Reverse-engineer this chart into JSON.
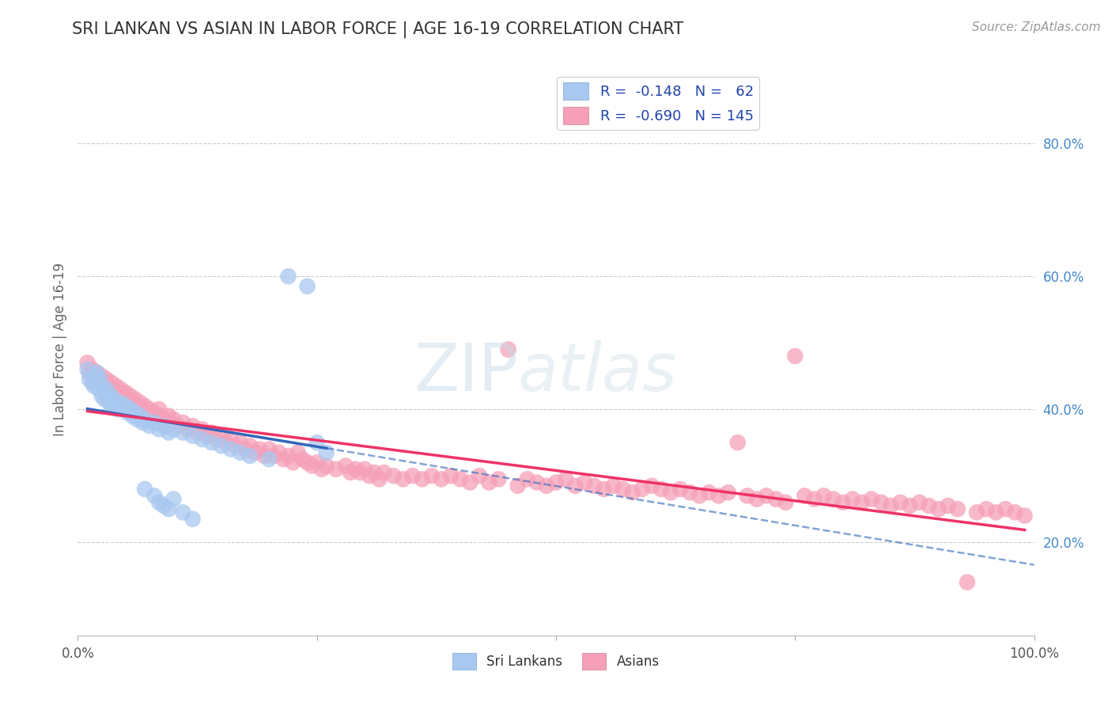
{
  "title": "SRI LANKAN VS ASIAN IN LABOR FORCE | AGE 16-19 CORRELATION CHART",
  "source": "Source: ZipAtlas.com",
  "ylabel": "In Labor Force | Age 16-19",
  "xlim": [
    0.0,
    1.0
  ],
  "ylim": [
    0.06,
    0.92
  ],
  "ytick_labels": [
    "20.0%",
    "40.0%",
    "60.0%",
    "80.0%"
  ],
  "ytick_values": [
    0.2,
    0.4,
    0.6,
    0.8
  ],
  "sri_lankans_color": "#a8c8f0",
  "asians_color": "#f5a0b8",
  "sri_lankans_line_color": "#3366bb",
  "asians_line_color": "#ee3366",
  "background_color": "#ffffff",
  "grid_color": "#cccccc",
  "R_sri": -0.148,
  "N_sri": 62,
  "R_asian": -0.69,
  "N_asian": 145,
  "sri_lankans": [
    [
      0.01,
      0.46
    ],
    [
      0.012,
      0.445
    ],
    [
      0.015,
      0.44
    ],
    [
      0.017,
      0.435
    ],
    [
      0.018,
      0.45
    ],
    [
      0.02,
      0.455
    ],
    [
      0.02,
      0.44
    ],
    [
      0.022,
      0.43
    ],
    [
      0.023,
      0.445
    ],
    [
      0.025,
      0.435
    ],
    [
      0.025,
      0.42
    ],
    [
      0.027,
      0.425
    ],
    [
      0.028,
      0.415
    ],
    [
      0.03,
      0.43
    ],
    [
      0.03,
      0.42
    ],
    [
      0.032,
      0.415
    ],
    [
      0.033,
      0.41
    ],
    [
      0.035,
      0.42
    ],
    [
      0.035,
      0.405
    ],
    [
      0.037,
      0.415
    ],
    [
      0.038,
      0.405
    ],
    [
      0.04,
      0.41
    ],
    [
      0.042,
      0.4
    ],
    [
      0.043,
      0.405
    ],
    [
      0.045,
      0.41
    ],
    [
      0.047,
      0.4
    ],
    [
      0.05,
      0.405
    ],
    [
      0.052,
      0.395
    ],
    [
      0.055,
      0.4
    ],
    [
      0.057,
      0.39
    ],
    [
      0.06,
      0.395
    ],
    [
      0.062,
      0.385
    ],
    [
      0.065,
      0.39
    ],
    [
      0.068,
      0.38
    ],
    [
      0.07,
      0.385
    ],
    [
      0.075,
      0.375
    ],
    [
      0.08,
      0.38
    ],
    [
      0.085,
      0.37
    ],
    [
      0.09,
      0.375
    ],
    [
      0.095,
      0.365
    ],
    [
      0.1,
      0.37
    ],
    [
      0.11,
      0.365
    ],
    [
      0.12,
      0.36
    ],
    [
      0.13,
      0.355
    ],
    [
      0.14,
      0.35
    ],
    [
      0.15,
      0.345
    ],
    [
      0.16,
      0.34
    ],
    [
      0.17,
      0.335
    ],
    [
      0.18,
      0.33
    ],
    [
      0.2,
      0.325
    ],
    [
      0.22,
      0.6
    ],
    [
      0.24,
      0.585
    ],
    [
      0.25,
      0.35
    ],
    [
      0.26,
      0.335
    ],
    [
      0.07,
      0.28
    ],
    [
      0.08,
      0.27
    ],
    [
      0.085,
      0.26
    ],
    [
      0.09,
      0.255
    ],
    [
      0.095,
      0.25
    ],
    [
      0.1,
      0.265
    ],
    [
      0.11,
      0.245
    ],
    [
      0.12,
      0.235
    ]
  ],
  "asians": [
    [
      0.01,
      0.47
    ],
    [
      0.012,
      0.455
    ],
    [
      0.015,
      0.46
    ],
    [
      0.018,
      0.45
    ],
    [
      0.02,
      0.455
    ],
    [
      0.022,
      0.445
    ],
    [
      0.025,
      0.45
    ],
    [
      0.027,
      0.44
    ],
    [
      0.03,
      0.445
    ],
    [
      0.032,
      0.435
    ],
    [
      0.035,
      0.44
    ],
    [
      0.037,
      0.43
    ],
    [
      0.04,
      0.435
    ],
    [
      0.042,
      0.425
    ],
    [
      0.045,
      0.43
    ],
    [
      0.047,
      0.42
    ],
    [
      0.05,
      0.425
    ],
    [
      0.052,
      0.415
    ],
    [
      0.055,
      0.42
    ],
    [
      0.057,
      0.41
    ],
    [
      0.06,
      0.415
    ],
    [
      0.062,
      0.405
    ],
    [
      0.065,
      0.41
    ],
    [
      0.067,
      0.4
    ],
    [
      0.07,
      0.405
    ],
    [
      0.072,
      0.395
    ],
    [
      0.075,
      0.4
    ],
    [
      0.077,
      0.39
    ],
    [
      0.08,
      0.395
    ],
    [
      0.082,
      0.385
    ],
    [
      0.085,
      0.4
    ],
    [
      0.087,
      0.39
    ],
    [
      0.09,
      0.385
    ],
    [
      0.092,
      0.375
    ],
    [
      0.095,
      0.39
    ],
    [
      0.097,
      0.38
    ],
    [
      0.1,
      0.385
    ],
    [
      0.105,
      0.375
    ],
    [
      0.11,
      0.38
    ],
    [
      0.115,
      0.37
    ],
    [
      0.12,
      0.375
    ],
    [
      0.125,
      0.365
    ],
    [
      0.13,
      0.37
    ],
    [
      0.135,
      0.36
    ],
    [
      0.14,
      0.365
    ],
    [
      0.145,
      0.355
    ],
    [
      0.15,
      0.36
    ],
    [
      0.155,
      0.35
    ],
    [
      0.16,
      0.355
    ],
    [
      0.165,
      0.345
    ],
    [
      0.17,
      0.35
    ],
    [
      0.175,
      0.34
    ],
    [
      0.18,
      0.345
    ],
    [
      0.185,
      0.335
    ],
    [
      0.19,
      0.34
    ],
    [
      0.195,
      0.33
    ],
    [
      0.2,
      0.34
    ],
    [
      0.205,
      0.33
    ],
    [
      0.21,
      0.335
    ],
    [
      0.215,
      0.325
    ],
    [
      0.22,
      0.33
    ],
    [
      0.225,
      0.32
    ],
    [
      0.23,
      0.335
    ],
    [
      0.235,
      0.325
    ],
    [
      0.24,
      0.32
    ],
    [
      0.245,
      0.315
    ],
    [
      0.25,
      0.32
    ],
    [
      0.255,
      0.31
    ],
    [
      0.26,
      0.315
    ],
    [
      0.27,
      0.31
    ],
    [
      0.28,
      0.315
    ],
    [
      0.285,
      0.305
    ],
    [
      0.29,
      0.31
    ],
    [
      0.295,
      0.305
    ],
    [
      0.3,
      0.31
    ],
    [
      0.305,
      0.3
    ],
    [
      0.31,
      0.305
    ],
    [
      0.315,
      0.295
    ],
    [
      0.32,
      0.305
    ],
    [
      0.33,
      0.3
    ],
    [
      0.34,
      0.295
    ],
    [
      0.35,
      0.3
    ],
    [
      0.36,
      0.295
    ],
    [
      0.37,
      0.3
    ],
    [
      0.38,
      0.295
    ],
    [
      0.39,
      0.3
    ],
    [
      0.4,
      0.295
    ],
    [
      0.41,
      0.29
    ],
    [
      0.42,
      0.3
    ],
    [
      0.43,
      0.29
    ],
    [
      0.44,
      0.295
    ],
    [
      0.45,
      0.49
    ],
    [
      0.46,
      0.285
    ],
    [
      0.47,
      0.295
    ],
    [
      0.48,
      0.29
    ],
    [
      0.49,
      0.285
    ],
    [
      0.5,
      0.29
    ],
    [
      0.51,
      0.295
    ],
    [
      0.52,
      0.285
    ],
    [
      0.53,
      0.29
    ],
    [
      0.54,
      0.285
    ],
    [
      0.55,
      0.28
    ],
    [
      0.56,
      0.285
    ],
    [
      0.57,
      0.28
    ],
    [
      0.58,
      0.275
    ],
    [
      0.59,
      0.28
    ],
    [
      0.6,
      0.285
    ],
    [
      0.61,
      0.28
    ],
    [
      0.62,
      0.275
    ],
    [
      0.63,
      0.28
    ],
    [
      0.64,
      0.275
    ],
    [
      0.65,
      0.27
    ],
    [
      0.66,
      0.275
    ],
    [
      0.67,
      0.27
    ],
    [
      0.68,
      0.275
    ],
    [
      0.69,
      0.35
    ],
    [
      0.7,
      0.27
    ],
    [
      0.71,
      0.265
    ],
    [
      0.72,
      0.27
    ],
    [
      0.73,
      0.265
    ],
    [
      0.74,
      0.26
    ],
    [
      0.75,
      0.48
    ],
    [
      0.76,
      0.27
    ],
    [
      0.77,
      0.265
    ],
    [
      0.78,
      0.27
    ],
    [
      0.79,
      0.265
    ],
    [
      0.8,
      0.26
    ],
    [
      0.81,
      0.265
    ],
    [
      0.82,
      0.26
    ],
    [
      0.83,
      0.265
    ],
    [
      0.84,
      0.26
    ],
    [
      0.85,
      0.255
    ],
    [
      0.86,
      0.26
    ],
    [
      0.87,
      0.255
    ],
    [
      0.88,
      0.26
    ],
    [
      0.89,
      0.255
    ],
    [
      0.9,
      0.25
    ],
    [
      0.91,
      0.255
    ],
    [
      0.92,
      0.25
    ],
    [
      0.93,
      0.14
    ],
    [
      0.94,
      0.245
    ],
    [
      0.95,
      0.25
    ],
    [
      0.96,
      0.245
    ],
    [
      0.97,
      0.25
    ],
    [
      0.98,
      0.245
    ],
    [
      0.99,
      0.24
    ]
  ]
}
